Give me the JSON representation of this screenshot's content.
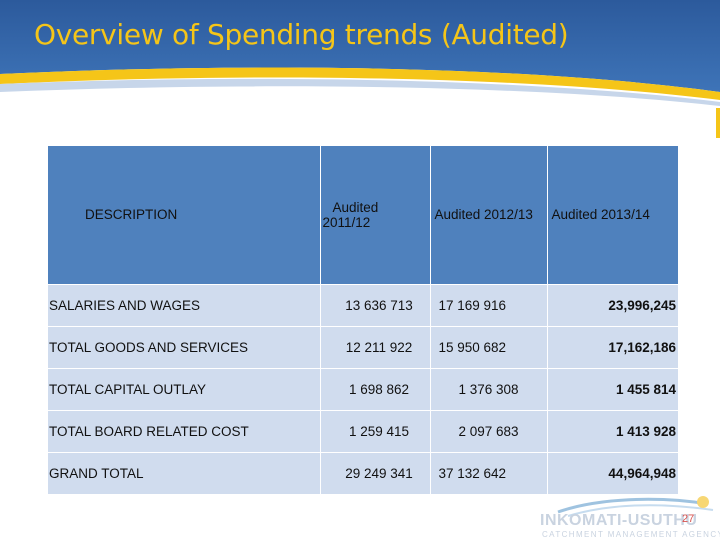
{
  "slide": {
    "title": "Overview of Spending trends (Audited)",
    "page_number": "27"
  },
  "colors": {
    "header_blue": "#2a5aa0",
    "title_yellow": "#f5c518",
    "table_header": "#4f81bd",
    "table_row": "#d0dcee"
  },
  "table": {
    "headers": {
      "description": "DESCRIPTION",
      "y1_line1": "Audited",
      "y1_line2": "2011/12",
      "y2": "Audited 2012/13",
      "y3": "Audited 2013/14"
    },
    "rows": [
      {
        "description": "SALARIES AND WAGES",
        "y1": "13 636 713",
        "y2": "17 169 916",
        "y3": "23,996,245"
      },
      {
        "description": "TOTAL GOODS AND SERVICES",
        "y1": "12 211 922",
        "y2": "15 950 682",
        "y3": "17,162,186"
      },
      {
        "description": "TOTAL CAPITAL OUTLAY",
        "y1": "1 698 862",
        "y2": "1 376 308",
        "y3": "1 455 814"
      },
      {
        "description": "TOTAL BOARD RELATED COST",
        "y1": "1 259 415",
        "y2": "2 097 683",
        "y3": "1 413 928"
      },
      {
        "description": "GRAND TOTAL",
        "y1": "29 249 341",
        "y2": "37 132 642",
        "y3": "44,964,948"
      }
    ]
  },
  "logo": {
    "name": "INKOMATI-USUTHU",
    "subtitle": "CATCHMENT MANAGEMENT AGENCY"
  }
}
